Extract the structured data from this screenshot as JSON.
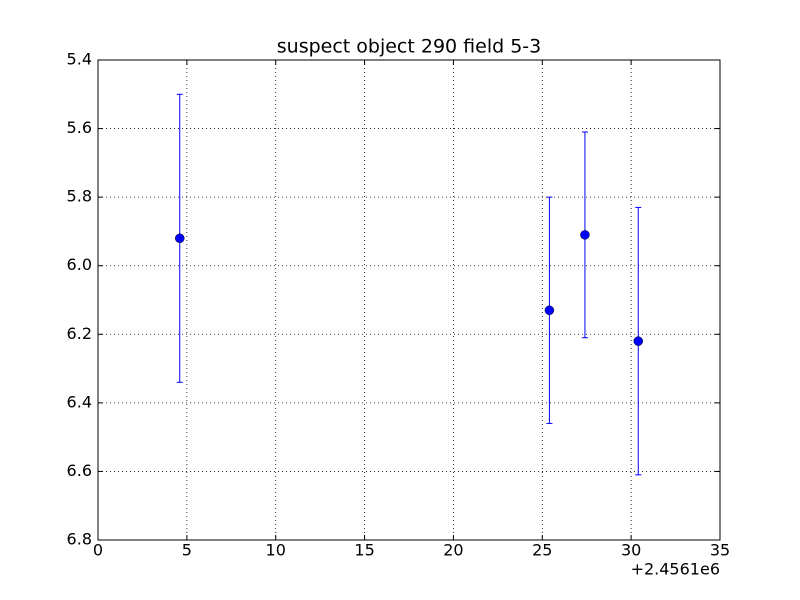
{
  "chart_data": {
    "type": "errorbar",
    "title": "suspect object 290 field 5-3",
    "x_offset_label": "+2.4561e6",
    "x": [
      4.6,
      25.4,
      27.4,
      30.4
    ],
    "values": [
      5.92,
      6.13,
      5.91,
      6.22
    ],
    "errors": [
      0.42,
      0.33,
      0.3,
      0.39
    ],
    "color": "#0000ff",
    "xlim": [
      0,
      35
    ],
    "xticks": [
      0,
      5,
      10,
      15,
      20,
      25,
      30,
      35
    ],
    "ylim": [
      6.8,
      5.4
    ],
    "yticks": [
      5.4,
      5.6,
      5.8,
      {
        "value": 6.0,
        "label": "6.0"
      },
      6.2,
      6.4,
      6.6,
      6.8
    ],
    "grid": true
  }
}
